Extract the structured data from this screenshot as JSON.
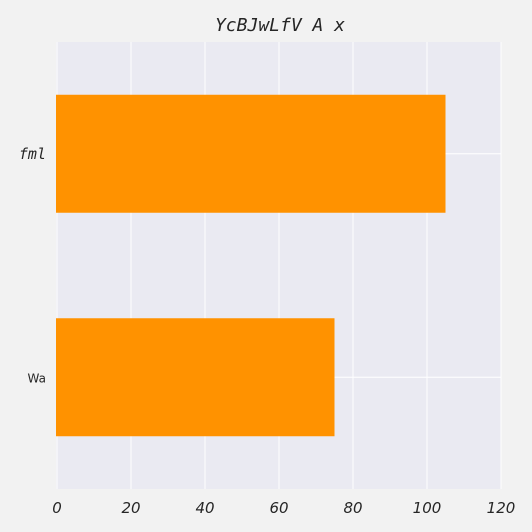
{
  "chart_data": {
    "type": "bar",
    "orientation": "horizontal",
    "title": "YcBJwLfV  A x",
    "xlabel": "",
    "ylabel": "",
    "categories": [
      "fml",
      "Wa"
    ],
    "values": [
      105,
      75
    ],
    "xlim": [
      0,
      120
    ],
    "xticks": [
      0,
      20,
      40,
      60,
      80,
      100,
      120
    ],
    "grid": true,
    "bar_color": "#ff9200",
    "plot_background": "#eaeaf2",
    "grid_color": "#ffffff"
  }
}
